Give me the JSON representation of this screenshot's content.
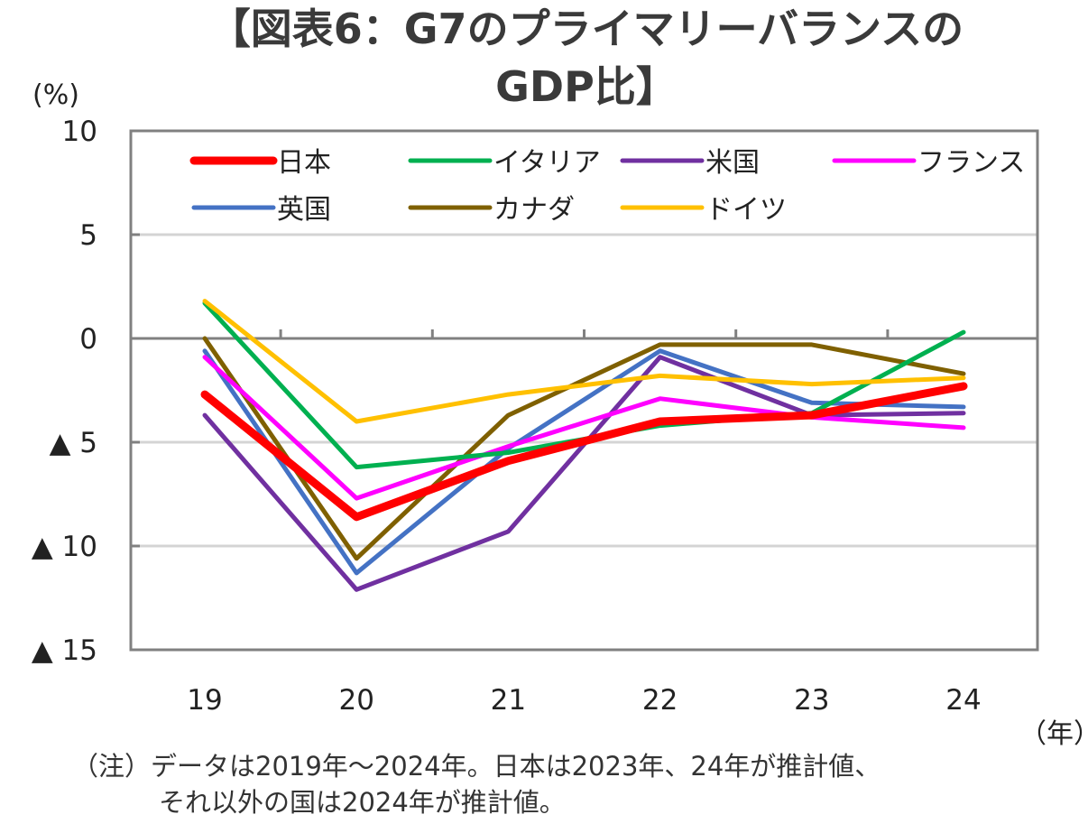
{
  "title_line1": "【図表6：G7のプライマリーバランスの",
  "title_line2": "GDP比】",
  "y_unit": "(%)",
  "x_unit": "（年）",
  "note_line1": "（注）データは2019年～2024年。日本は2023年、24年が推計値、",
  "note_line2": "それ以外の国は2024年が推計値。",
  "chart_data": {
    "type": "line",
    "title": "【図表6：G7のプライマリーバランスのGDP比】",
    "xlabel": "（年）",
    "ylabel": "(%)",
    "x": [
      "19",
      "20",
      "21",
      "22",
      "23",
      "24"
    ],
    "ylim": [
      -15,
      10
    ],
    "yticks": [
      10,
      5,
      0,
      -5,
      -10,
      -15
    ],
    "ytick_labels": [
      "10",
      "5",
      "0",
      "▲ 5",
      "▲ 10",
      "▲ 15"
    ],
    "grid": true,
    "legend_position": "top-inside",
    "series": [
      {
        "name": "日本",
        "color": "#ff0000",
        "width": "thick",
        "values": [
          -2.7,
          -8.6,
          -5.9,
          -4.0,
          -3.7,
          -2.3
        ]
      },
      {
        "name": "イタリア",
        "color": "#00b050",
        "width": "normal",
        "values": [
          1.7,
          -6.2,
          -5.5,
          -4.2,
          -3.6,
          0.3
        ]
      },
      {
        "name": "米国",
        "color": "#7030a0",
        "width": "normal",
        "values": [
          -3.7,
          -12.1,
          -9.3,
          -0.9,
          -3.7,
          -3.6
        ]
      },
      {
        "name": "フランス",
        "color": "#ff00ff",
        "width": "normal",
        "values": [
          -0.9,
          -7.7,
          -5.2,
          -2.9,
          -3.8,
          -4.3
        ]
      },
      {
        "name": "英国",
        "color": "#4472c4",
        "width": "normal",
        "values": [
          -0.6,
          -11.3,
          -5.3,
          -0.6,
          -3.1,
          -3.3
        ]
      },
      {
        "name": "カナダ",
        "color": "#7f6000",
        "width": "normal",
        "values": [
          0.0,
          -10.6,
          -3.7,
          -0.3,
          -0.3,
          -1.7
        ]
      },
      {
        "name": "ドイツ",
        "color": "#ffc000",
        "width": "normal",
        "values": [
          1.8,
          -4.0,
          -2.7,
          -1.8,
          -2.2,
          -1.9
        ]
      }
    ]
  }
}
